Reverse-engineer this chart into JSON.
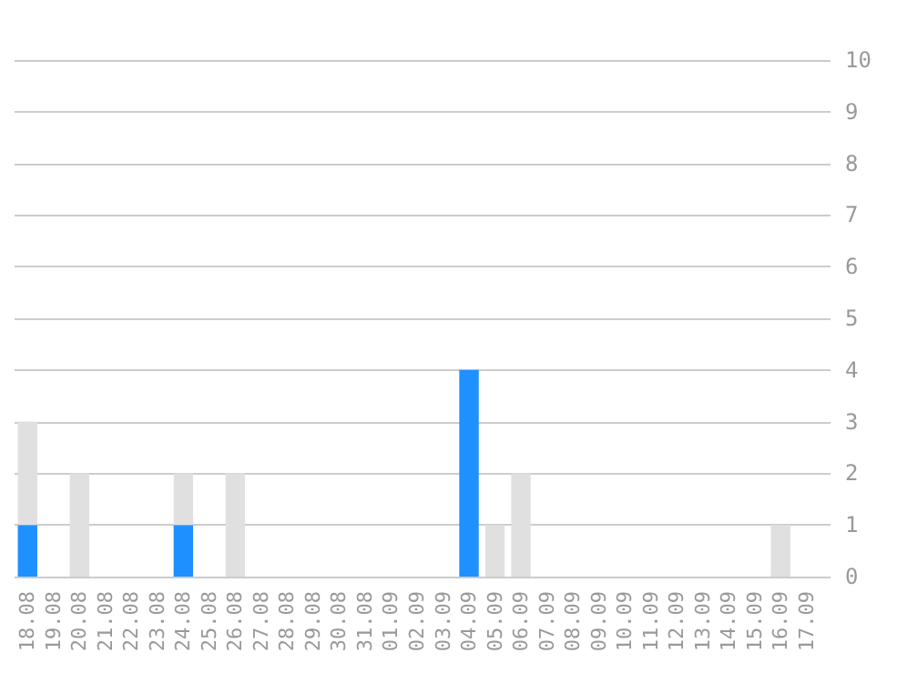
{
  "chart_data": {
    "type": "bar",
    "stacked": true,
    "categories": [
      "18.08",
      "19.08",
      "20.08",
      "21.08",
      "22.08",
      "23.08",
      "24.08",
      "25.08",
      "26.08",
      "27.08",
      "28.08",
      "29.08",
      "30.08",
      "31.08",
      "01.09",
      "02.09",
      "03.09",
      "04.09",
      "05.09",
      "06.09",
      "07.09",
      "08.09",
      "09.09",
      "10.09",
      "11.09",
      "12.09",
      "13.09",
      "14.09",
      "15.09",
      "16.09",
      "17.09"
    ],
    "series": [
      {
        "color": "#1e90ff",
        "values": [
          1,
          0,
          0,
          0,
          0,
          0,
          1,
          0,
          0,
          0,
          0,
          0,
          0,
          0,
          0,
          0,
          0,
          4,
          0,
          0,
          0,
          0,
          0,
          0,
          0,
          0,
          0,
          0,
          0,
          0,
          0
        ]
      },
      {
        "color": "#e0e0e0",
        "values": [
          2,
          0,
          2,
          0,
          0,
          0,
          1,
          0,
          2,
          0,
          0,
          0,
          0,
          0,
          0,
          0,
          0,
          0,
          1,
          2,
          0,
          0,
          0,
          0,
          0,
          0,
          0,
          0,
          0,
          1,
          0
        ]
      }
    ],
    "ylim": [
      0,
      10
    ],
    "yticks": [
      0,
      1,
      2,
      3,
      4,
      5,
      6,
      7,
      8,
      9,
      10
    ],
    "grid": "y"
  }
}
